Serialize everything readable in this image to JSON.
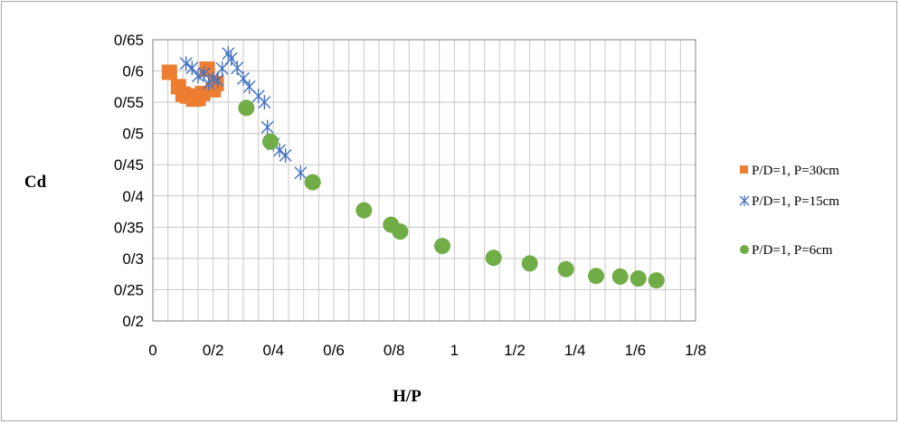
{
  "chart_data": {
    "type": "scatter",
    "xlabel": "H/P",
    "ylabel": "Cd",
    "xlim": [
      0,
      1.8
    ],
    "ylim": [
      0.2,
      0.65
    ],
    "x_major_step": 0.2,
    "x_minor_step": 0.05,
    "y_step": 0.05,
    "grid": true,
    "legend_position": "right",
    "x_tick_labels": [
      "0",
      "0/2",
      "0/4",
      "0/6",
      "0/8",
      "1",
      "1/2",
      "1/4",
      "1/6",
      "1/8"
    ],
    "y_tick_labels": [
      "0/2",
      "0/25",
      "0/3",
      "0/35",
      "0/4",
      "0/45",
      "0/5",
      "0/55",
      "0/6",
      "0/65"
    ],
    "series": [
      {
        "name": "P/D=1, P=30cm",
        "marker": "square",
        "color": "#ed7d31",
        "points": [
          [
            0.055,
            0.598
          ],
          [
            0.085,
            0.575
          ],
          [
            0.1,
            0.563
          ],
          [
            0.115,
            0.56
          ],
          [
            0.135,
            0.555
          ],
          [
            0.15,
            0.556
          ],
          [
            0.165,
            0.564
          ],
          [
            0.18,
            0.603
          ],
          [
            0.2,
            0.57
          ],
          [
            0.21,
            0.58
          ]
        ]
      },
      {
        "name": "P/D=1, P=15cm",
        "marker": "star",
        "color": "#4472c4",
        "points": [
          [
            0.11,
            0.612
          ],
          [
            0.13,
            0.605
          ],
          [
            0.15,
            0.592
          ],
          [
            0.17,
            0.596
          ],
          [
            0.185,
            0.58
          ],
          [
            0.2,
            0.588
          ],
          [
            0.215,
            0.585
          ],
          [
            0.23,
            0.604
          ],
          [
            0.25,
            0.628
          ],
          [
            0.26,
            0.62
          ],
          [
            0.28,
            0.605
          ],
          [
            0.3,
            0.588
          ],
          [
            0.32,
            0.575
          ],
          [
            0.35,
            0.56
          ],
          [
            0.37,
            0.55
          ],
          [
            0.38,
            0.51
          ],
          [
            0.4,
            0.483
          ],
          [
            0.42,
            0.473
          ],
          [
            0.44,
            0.465
          ],
          [
            0.49,
            0.437
          ]
        ]
      },
      {
        "name": "P/D=1, P=6cm",
        "marker": "circle",
        "color": "#70ad47",
        "points": [
          [
            0.31,
            0.541
          ],
          [
            0.39,
            0.487
          ],
          [
            0.53,
            0.422
          ],
          [
            0.7,
            0.377
          ],
          [
            0.79,
            0.354
          ],
          [
            0.82,
            0.343
          ],
          [
            0.96,
            0.32
          ],
          [
            1.13,
            0.301
          ],
          [
            1.25,
            0.292
          ],
          [
            1.37,
            0.283
          ],
          [
            1.47,
            0.272
          ],
          [
            1.55,
            0.271
          ],
          [
            1.61,
            0.268
          ],
          [
            1.67,
            0.265
          ]
        ]
      }
    ]
  }
}
